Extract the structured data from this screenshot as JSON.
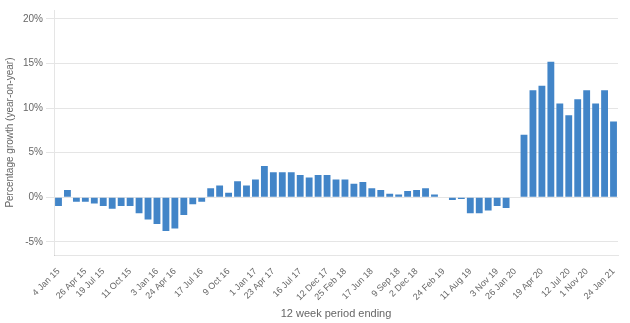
{
  "chart_data": {
    "type": "bar",
    "xlabel": "12 week period ending",
    "ylabel": "Percentage growth (year-on-year)",
    "color": "#4285c8",
    "categories": [
      "4 Jan 15",
      null,
      null,
      "26 Apr 15",
      null,
      "19 Jul 15",
      null,
      null,
      "11 Oct 15",
      null,
      null,
      "3 Jan 16",
      null,
      "24 Apr 16",
      null,
      null,
      "17 Jul 16",
      null,
      null,
      "9 Oct 16",
      null,
      null,
      "1 Jan 17",
      null,
      "23 Apr 17",
      null,
      null,
      "16 Jul 17",
      null,
      null,
      "12 Dec 17",
      null,
      "25 Feb 18",
      null,
      null,
      "17 Jun 18",
      null,
      null,
      "9 Sep 18",
      null,
      "2 Dec 18",
      null,
      null,
      "24 Feb 19",
      null,
      null,
      "11 Aug 19",
      null,
      null,
      "3 Nov 19",
      null,
      "26 Jan 20",
      null,
      null,
      "19 Apr 20",
      null,
      null,
      "12 Jul 20",
      null,
      "1 Nov 20",
      null,
      null,
      "24 Jan 21"
    ],
    "values": [
      -0.01,
      0.008,
      -0.005,
      -0.005,
      -0.007,
      -0.01,
      -0.013,
      -0.01,
      -0.01,
      -0.018,
      -0.025,
      -0.03,
      -0.038,
      -0.035,
      -0.02,
      -0.008,
      -0.005,
      0.01,
      0.013,
      0.005,
      0.018,
      0.013,
      0.02,
      0.035,
      0.028,
      0.028,
      0.028,
      0.025,
      0.022,
      0.025,
      0.025,
      0.02,
      0.02,
      0.015,
      0.017,
      0.01,
      0.008,
      0.004,
      0.003,
      0.007,
      0.008,
      0.01,
      0.003,
      0.0,
      -0.003,
      -0.002,
      -0.018,
      -0.018,
      -0.015,
      -0.01,
      -0.012,
      0.0,
      0.07,
      0.12,
      0.125,
      0.152,
      0.105,
      0.092,
      0.11,
      0.12,
      0.105,
      0.12,
      0.085
    ],
    "ylim": [
      -0.065,
      0.21
    ],
    "yticks": [
      {
        "value": -0.05,
        "label": "-5%"
      },
      {
        "value": 0.0,
        "label": "0%"
      },
      {
        "value": 0.05,
        "label": "5%"
      },
      {
        "value": 0.1,
        "label": "10%"
      },
      {
        "value": 0.15,
        "label": "15%"
      },
      {
        "value": 0.2,
        "label": "20%"
      }
    ],
    "grid": true
  }
}
